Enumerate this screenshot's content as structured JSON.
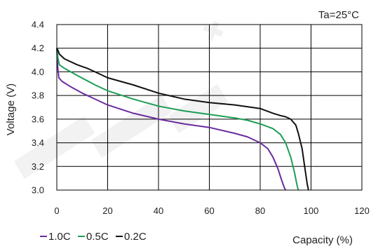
{
  "chart_data": {
    "type": "line",
    "annotation": "Ta=25°C",
    "xlabel": "Capacity (%)",
    "ylabel": "Voltage (V)",
    "xlim": [
      0,
      120
    ],
    "ylim": [
      3.0,
      4.4
    ],
    "xticks": [
      "0",
      "20",
      "40",
      "60",
      "80",
      "100",
      "120"
    ],
    "yticks": [
      "3.0",
      "3.2",
      "3.4",
      "3.6",
      "3.8",
      "4.0",
      "4.2",
      "4.4"
    ],
    "grid": true,
    "legend_position": "bottom-left",
    "series": [
      {
        "name": "1.0C",
        "color": "#6a2c9e",
        "x": [
          0,
          0.3,
          0.8,
          2,
          5,
          10,
          20,
          30,
          40,
          50,
          60,
          70,
          75,
          80,
          83,
          85,
          87,
          88.5,
          89.5,
          90
        ],
        "y": [
          4.2,
          4.05,
          3.95,
          3.92,
          3.88,
          3.82,
          3.72,
          3.65,
          3.6,
          3.56,
          3.53,
          3.48,
          3.45,
          3.4,
          3.35,
          3.28,
          3.18,
          3.08,
          3.02,
          3.0
        ]
      },
      {
        "name": "0.5C",
        "color": "#1e9e56",
        "x": [
          0,
          0.4,
          1,
          3,
          8,
          15,
          20,
          30,
          40,
          50,
          60,
          70,
          75,
          80,
          85,
          88,
          90,
          92,
          93.5,
          94.5,
          95
        ],
        "y": [
          4.2,
          4.12,
          4.06,
          4.03,
          3.97,
          3.89,
          3.84,
          3.77,
          3.71,
          3.67,
          3.64,
          3.61,
          3.59,
          3.56,
          3.52,
          3.47,
          3.4,
          3.28,
          3.15,
          3.04,
          3.0
        ]
      },
      {
        "name": "0.2C",
        "color": "#111111",
        "x": [
          0,
          0.5,
          1,
          3,
          8,
          12,
          15,
          20,
          30,
          40,
          50,
          60,
          70,
          80,
          85,
          88,
          90,
          92,
          94,
          95,
          96.5,
          97.5,
          98.5,
          99
        ],
        "y": [
          4.2,
          4.18,
          4.15,
          4.11,
          4.06,
          4.03,
          4.0,
          3.95,
          3.89,
          3.82,
          3.77,
          3.74,
          3.72,
          3.69,
          3.65,
          3.63,
          3.62,
          3.6,
          3.55,
          3.48,
          3.35,
          3.2,
          3.05,
          3.0
        ]
      }
    ]
  }
}
